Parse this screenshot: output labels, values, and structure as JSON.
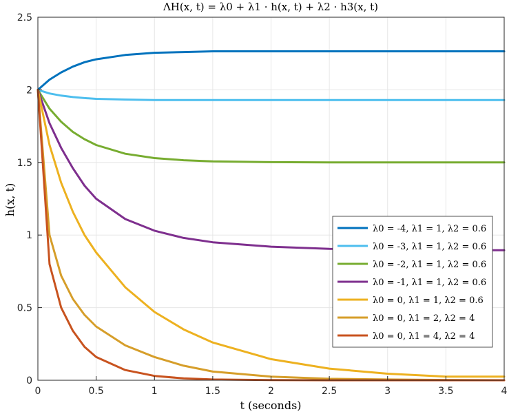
{
  "chart_data": {
    "type": "line",
    "title": "ΛH(x, t) = λ0 + λ1 · h(x, t) + λ2 · h3(x, t)",
    "xlabel": "t (seconds)",
    "ylabel": "h(x, t)",
    "xlim": [
      0,
      4
    ],
    "ylim": [
      0,
      2.5
    ],
    "xticks": [
      "0",
      "0.5",
      "1",
      "1.5",
      "2",
      "2.5",
      "3",
      "3.5",
      "4"
    ],
    "yticks": [
      "0",
      "0.5",
      "1",
      "1.5",
      "2",
      "2.5"
    ],
    "grid": true,
    "legend_position": "right",
    "x": [
      0,
      0.1,
      0.2,
      0.3,
      0.4,
      0.5,
      0.75,
      1.0,
      1.25,
      1.5,
      2.0,
      2.5,
      3.0,
      3.5,
      4.0
    ],
    "series": [
      {
        "name": "λ0 = -4, λ1 = 1, λ2 = 0.6",
        "color": "#0072BD",
        "values": [
          2.0,
          2.07,
          2.12,
          2.16,
          2.19,
          2.21,
          2.24,
          2.255,
          2.26,
          2.265,
          2.265,
          2.265,
          2.265,
          2.265,
          2.265
        ]
      },
      {
        "name": "λ0 = -3, λ1 = 1, λ2 = 0.6",
        "color": "#4DBEEE",
        "values": [
          2.0,
          1.975,
          1.96,
          1.95,
          1.943,
          1.938,
          1.933,
          1.93,
          1.93,
          1.93,
          1.93,
          1.93,
          1.93,
          1.93,
          1.93
        ]
      },
      {
        "name": "λ0 = -2, λ1 = 1, λ2 = 0.6",
        "color": "#77AC30",
        "values": [
          2.0,
          1.87,
          1.78,
          1.71,
          1.66,
          1.62,
          1.56,
          1.53,
          1.515,
          1.507,
          1.502,
          1.5,
          1.5,
          1.5,
          1.5
        ]
      },
      {
        "name": "λ0 = -1, λ1 = 1, λ2 = 0.6",
        "color": "#7E2F8E",
        "values": [
          2.0,
          1.77,
          1.6,
          1.46,
          1.34,
          1.25,
          1.11,
          1.03,
          0.98,
          0.95,
          0.92,
          0.905,
          0.9,
          0.895,
          0.895
        ]
      },
      {
        "name": "λ0 = 0, λ1 = 1, λ2 = 0.6",
        "color": "#EDB120",
        "values": [
          2.0,
          1.62,
          1.36,
          1.16,
          1.0,
          0.88,
          0.64,
          0.47,
          0.35,
          0.26,
          0.145,
          0.08,
          0.045,
          0.025,
          0.025
        ]
      },
      {
        "name": "λ0 = 0, λ1 = 2, λ2 = 4",
        "color": "#D69E2A",
        "values": [
          2.0,
          1.0,
          0.72,
          0.56,
          0.45,
          0.37,
          0.24,
          0.16,
          0.1,
          0.06,
          0.025,
          0.01,
          0.005,
          0.002,
          0.0
        ]
      },
      {
        "name": "λ0 = 0, λ1 = 4, λ2 = 4",
        "color": "#C8531F",
        "values": [
          2.0,
          0.8,
          0.5,
          0.34,
          0.23,
          0.16,
          0.07,
          0.03,
          0.013,
          0.005,
          0.001,
          0.0,
          0.0,
          0.0,
          0.0
        ]
      }
    ]
  }
}
